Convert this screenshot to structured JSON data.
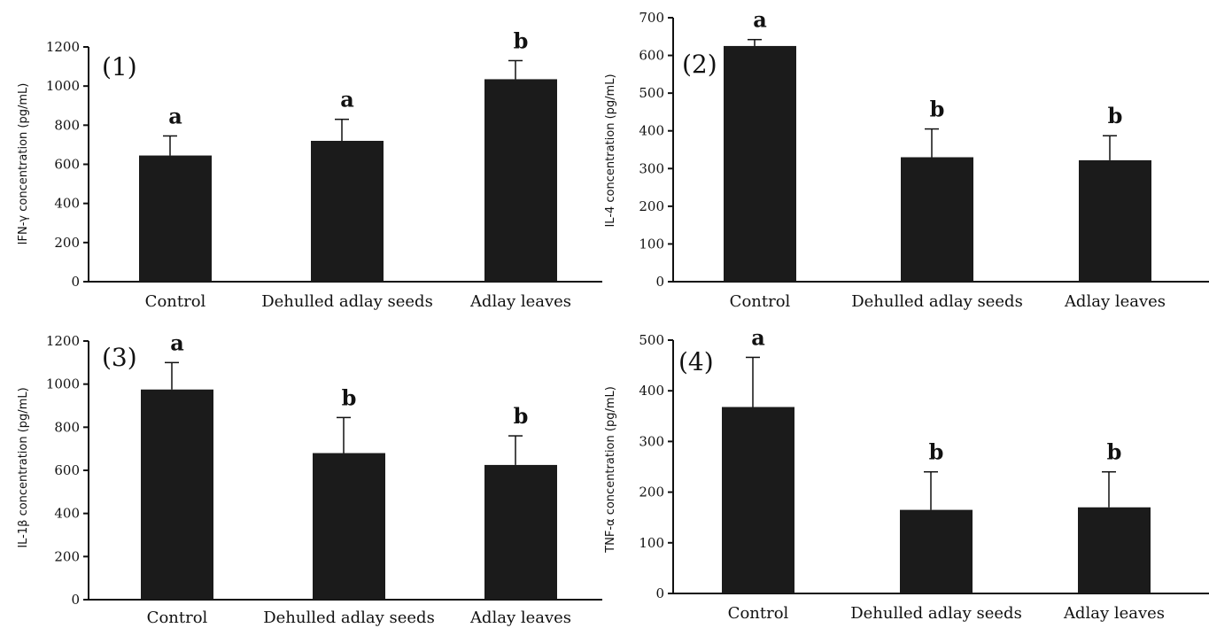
{
  "chart_data": [
    {
      "type": "bar",
      "panel_label": "(1)",
      "ylabel": "IFN-γ concentration (pg/mL)",
      "categories": [
        "Control",
        "Dehulled adlay seeds",
        "Adlay leaves"
      ],
      "values": [
        645,
        720,
        1035
      ],
      "errors": [
        100,
        110,
        95
      ],
      "significance": [
        "a",
        "a",
        "b"
      ],
      "ylim": [
        0,
        1200
      ],
      "yticks": [
        0,
        200,
        400,
        600,
        800,
        1000,
        1200
      ]
    },
    {
      "type": "bar",
      "panel_label": "(2)",
      "ylabel": "IL-4 concentration (pg/mL)",
      "categories": [
        "Control",
        "Dehulled adlay seeds",
        "Adlay leaves"
      ],
      "values": [
        625,
        330,
        322
      ],
      "errors": [
        17,
        75,
        65
      ],
      "significance": [
        "a",
        "b",
        "b"
      ],
      "ylim": [
        0,
        700
      ],
      "yticks": [
        0,
        100,
        200,
        300,
        400,
        500,
        600,
        700
      ]
    },
    {
      "type": "bar",
      "panel_label": "(3)",
      "ylabel": "IL-1β concentration (pg/mL)",
      "categories": [
        "Control",
        "Dehulled adlay seeds",
        "Adlay leaves"
      ],
      "values": [
        975,
        680,
        625
      ],
      "errors": [
        125,
        165,
        135
      ],
      "significance": [
        "a",
        "b",
        "b"
      ],
      "ylim": [
        0,
        1200
      ],
      "yticks": [
        0,
        200,
        400,
        600,
        800,
        1000,
        1200
      ]
    },
    {
      "type": "bar",
      "panel_label": "(4)",
      "ylabel": "TNF-α concentration (pg/mL)",
      "categories": [
        "Control",
        "Dehulled adlay seeds",
        "Adlay leaves"
      ],
      "values": [
        368,
        165,
        170
      ],
      "errors": [
        98,
        75,
        70
      ],
      "significance": [
        "a",
        "b",
        "b"
      ],
      "ylim": [
        0,
        500
      ],
      "yticks": [
        0,
        100,
        200,
        300,
        400,
        500
      ]
    }
  ]
}
